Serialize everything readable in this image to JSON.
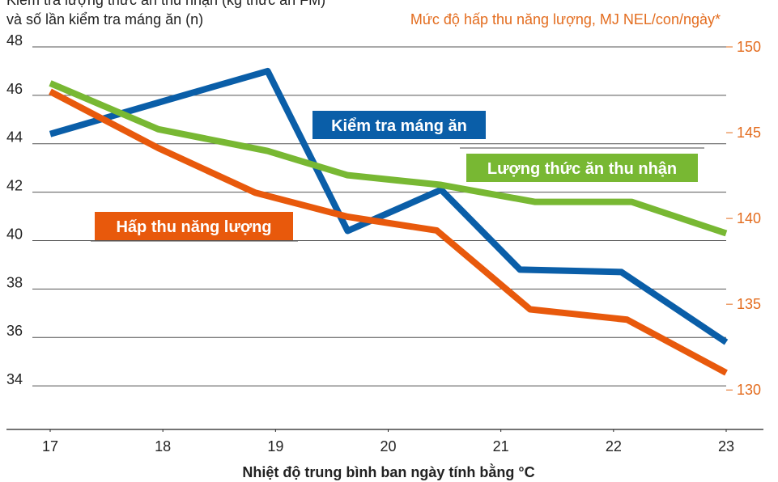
{
  "chart_data": {
    "type": "line",
    "y_title_lines": [
      "Kiểm tra lượng thức ăn thu nhận (kg thức ăn FM)",
      "và số lần kiểm tra máng ăn (n)"
    ],
    "y2_title": "Mức độ hấp thu năng lượng, MJ NEL/con/ngày*",
    "x_title": "Nhiệt độ trung bình ban ngày tính bằng °C",
    "xlim": [
      17,
      23
    ],
    "xticks": [
      17,
      18,
      19,
      20,
      21,
      22,
      23
    ],
    "ylim": [
      32.2,
      48
    ],
    "yticks": [
      34,
      36,
      38,
      40,
      42,
      44,
      46,
      48
    ],
    "y2lim": [
      127.7,
      150
    ],
    "y2ticks": [
      130,
      135,
      140,
      145,
      150
    ],
    "grid": true,
    "series": [
      {
        "name": "Kiểm tra máng ăn",
        "color": "#0a5ea8",
        "axis": "y",
        "x": [
          17,
          17.96,
          18.93,
          19.64,
          20.47,
          21.17,
          22.07,
          23
        ],
        "values": [
          44.4,
          45.7,
          47.0,
          40.4,
          42.1,
          38.8,
          38.7,
          35.8
        ]
      },
      {
        "name": "Lượng thức ăn thu nhận",
        "color": "#78b833",
        "axis": "y",
        "x": [
          17,
          17.96,
          18.93,
          19.64,
          20.47,
          21.3,
          22.16,
          23
        ],
        "values": [
          46.5,
          44.6,
          43.7,
          42.7,
          42.3,
          41.6,
          41.6,
          40.3
        ]
      },
      {
        "name": "Hấp thu năng lượng",
        "color": "#e8590c",
        "axis": "y2",
        "x": [
          17,
          17.96,
          18.82,
          19.64,
          20.43,
          21.26,
          22.12,
          23
        ],
        "values": [
          147.4,
          144.1,
          141.5,
          140.1,
          139.3,
          134.7,
          134.1,
          131.0
        ]
      }
    ]
  }
}
